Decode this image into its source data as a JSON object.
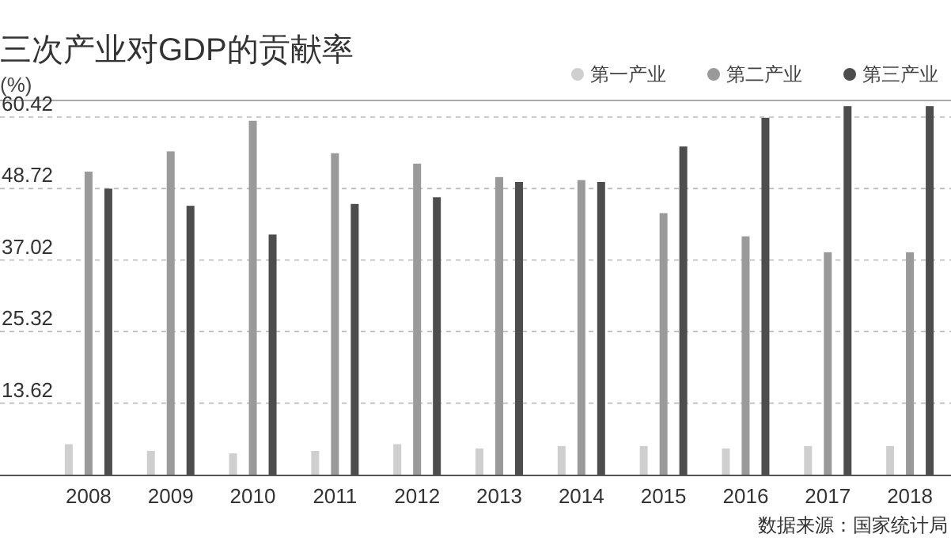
{
  "chart_data": {
    "type": "bar",
    "title": "三次产业对GDP的贡献率",
    "ylabel": "(%)",
    "categories": [
      "2008",
      "2009",
      "2010",
      "2011",
      "2012",
      "2013",
      "2014",
      "2015",
      "2016",
      "2017",
      "2018"
    ],
    "series": [
      {
        "name": "第一产业",
        "color": "#cfcfcf",
        "values": [
          6.9,
          5.8,
          5.4,
          5.8,
          6.9,
          6.2,
          6.6,
          6.6,
          6.2,
          6.6,
          6.6
        ]
      },
      {
        "name": "第二产业",
        "color": "#9a9a9a",
        "values": [
          51.5,
          54.8,
          59.8,
          54.5,
          52.8,
          50.6,
          50.1,
          44.7,
          40.9,
          38.3,
          38.3
        ]
      },
      {
        "name": "第三产业",
        "color": "#4d4d4d",
        "values": [
          48.7,
          45.9,
          41.2,
          46.2,
          47.3,
          49.8,
          49.8,
          55.6,
          60.3,
          62.2,
          62.2
        ]
      }
    ],
    "ylim": [
      1.92,
      63
    ],
    "yticks": [
      13.62,
      25.32,
      37.02,
      48.72,
      60.42
    ],
    "grid": "y",
    "legend": "top right",
    "annotations": [
      "数据来源：国家统计局"
    ]
  }
}
